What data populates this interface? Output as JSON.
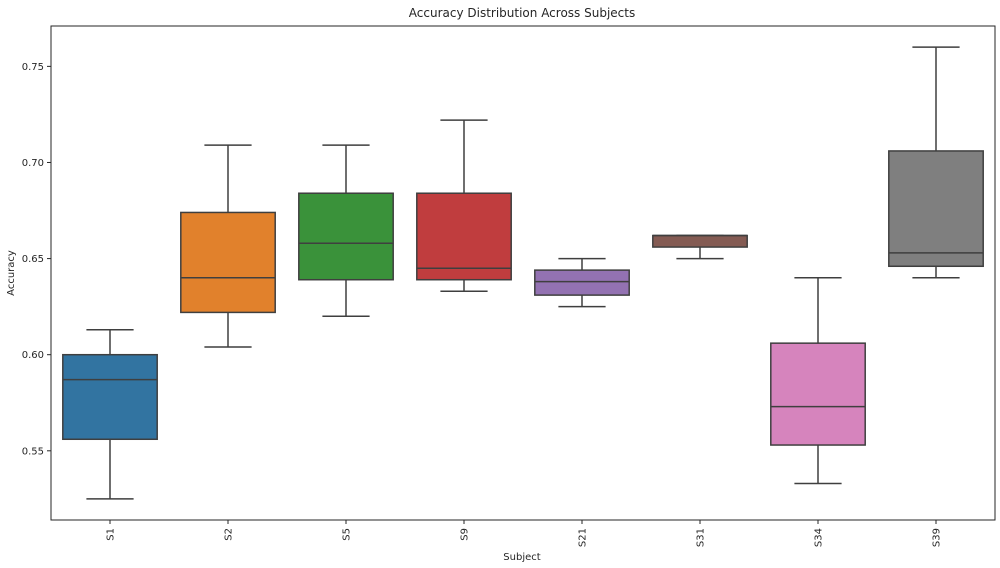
{
  "chart_data": {
    "type": "boxplot",
    "title": "Accuracy Distribution Across Subjects",
    "xlabel": "Subject",
    "ylabel": "Accuracy",
    "ylim": [
      0.514,
      0.771
    ],
    "yticks": [
      "0.55",
      "0.60",
      "0.65",
      "0.70",
      "0.75"
    ],
    "ytick_values": [
      0.55,
      0.6,
      0.65,
      0.7,
      0.75
    ],
    "categories": [
      "S1",
      "S2",
      "S5",
      "S9",
      "S21",
      "S31",
      "S34",
      "S39"
    ],
    "series": [
      {
        "category": "S1",
        "color": "#3274a1",
        "whisker_low": 0.525,
        "q1": 0.556,
        "median": 0.587,
        "q3": 0.6,
        "whisker_high": 0.613
      },
      {
        "category": "S2",
        "color": "#e1812c",
        "whisker_low": 0.604,
        "q1": 0.622,
        "median": 0.64,
        "q3": 0.674,
        "whisker_high": 0.709
      },
      {
        "category": "S5",
        "color": "#3a923a",
        "whisker_low": 0.62,
        "q1": 0.639,
        "median": 0.658,
        "q3": 0.684,
        "whisker_high": 0.709
      },
      {
        "category": "S9",
        "color": "#c03d3e",
        "whisker_low": 0.633,
        "q1": 0.639,
        "median": 0.645,
        "q3": 0.684,
        "whisker_high": 0.722
      },
      {
        "category": "S21",
        "color": "#9372b2",
        "whisker_low": 0.625,
        "q1": 0.631,
        "median": 0.638,
        "q3": 0.644,
        "whisker_high": 0.65
      },
      {
        "category": "S31",
        "color": "#845b53",
        "whisker_low": 0.65,
        "q1": 0.656,
        "median": 0.662,
        "q3": 0.662,
        "whisker_high": 0.662
      },
      {
        "category": "S34",
        "color": "#d684bd",
        "whisker_low": 0.533,
        "q1": 0.553,
        "median": 0.573,
        "q3": 0.606,
        "whisker_high": 0.64
      },
      {
        "category": "S39",
        "color": "#7f7f7f",
        "whisker_low": 0.64,
        "q1": 0.646,
        "median": 0.653,
        "q3": 0.706,
        "whisker_high": 0.76
      }
    ]
  }
}
